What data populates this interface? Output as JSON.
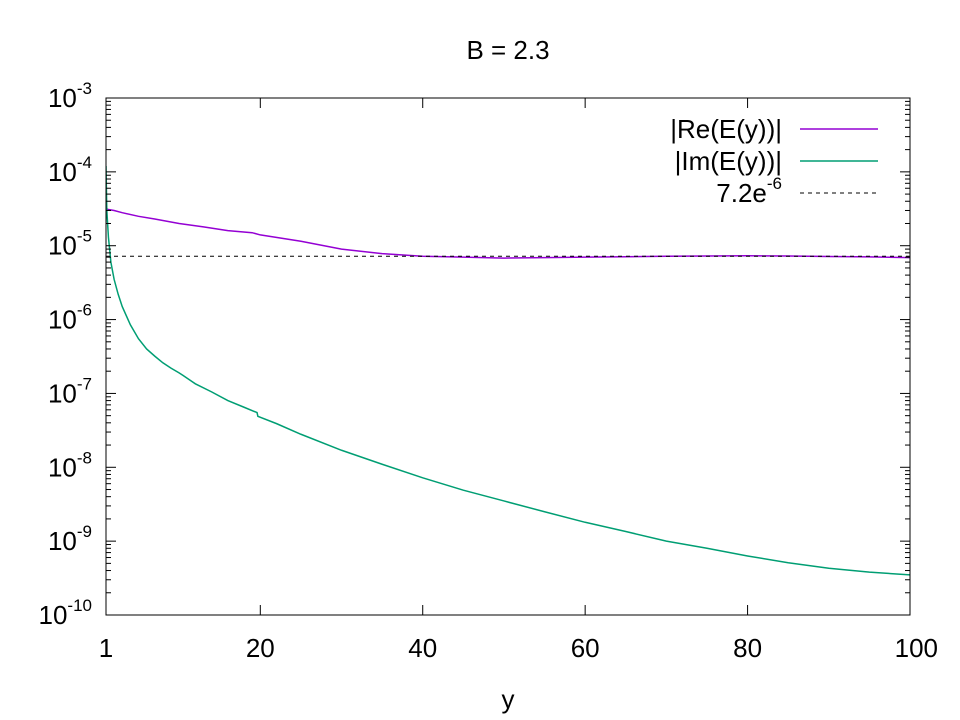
{
  "chart_data": {
    "type": "line",
    "title": "B = 2.3",
    "xlabel": "y",
    "ylabel": "",
    "xlim": [
      1,
      100
    ],
    "ylim": [
      1e-10,
      0.001
    ],
    "yscale": "log",
    "grid": false,
    "legend_position": "top-right",
    "x_ticks": [
      {
        "value": 1,
        "label": "1"
      },
      {
        "value": 20,
        "label": "20"
      },
      {
        "value": 40,
        "label": "40"
      },
      {
        "value": 60,
        "label": "60"
      },
      {
        "value": 80,
        "label": "80"
      },
      {
        "value": 100,
        "label": "100"
      }
    ],
    "y_ticks": [
      {
        "value": 0.001,
        "base": "10",
        "exp": "-3"
      },
      {
        "value": 0.0001,
        "base": "10",
        "exp": "-4"
      },
      {
        "value": 1e-05,
        "base": "10",
        "exp": "-5"
      },
      {
        "value": 1e-06,
        "base": "10",
        "exp": "-6"
      },
      {
        "value": 1e-07,
        "base": "10",
        "exp": "-7"
      },
      {
        "value": 1e-08,
        "base": "10",
        "exp": "-8"
      },
      {
        "value": 1e-09,
        "base": "10",
        "exp": "-9"
      },
      {
        "value": 1e-10,
        "base": "10",
        "exp": "-10"
      }
    ],
    "series": [
      {
        "name": "|Re(E(y))|",
        "color": "#9400d3",
        "style": "solid",
        "x": [
          1,
          1.2,
          2,
          3,
          5,
          7,
          10,
          13,
          16,
          19,
          20,
          25,
          30,
          35,
          40,
          45,
          50,
          55,
          60,
          65,
          70,
          75,
          80,
          85,
          90,
          95,
          100
        ],
        "y": [
          3.3e-05,
          3.1e-05,
          3e-05,
          2.8e-05,
          2.5e-05,
          2.3e-05,
          2e-05,
          1.8e-05,
          1.6e-05,
          1.5e-05,
          1.4e-05,
          1.15e-05,
          9e-06,
          7.8e-06,
          7.2e-06,
          7e-06,
          6.8e-06,
          6.9e-06,
          7e-06,
          7.1e-06,
          7.2e-06,
          7.25e-06,
          7.3e-06,
          7.25e-06,
          7.15e-06,
          7.05e-06,
          6.9e-06
        ]
      },
      {
        "name": "|Im(E(y))|",
        "color": "#009e73",
        "style": "solid",
        "x": [
          1,
          1.1,
          1.3,
          1.6,
          2,
          2.5,
          3,
          4,
          5,
          6,
          7,
          8,
          9,
          10,
          10.5,
          12,
          14,
          16,
          18,
          19.6,
          19.7,
          22,
          25,
          30,
          35,
          40,
          45,
          50,
          55,
          60,
          65,
          70,
          75,
          80,
          85,
          90,
          95,
          100
        ],
        "y": [
          0.00012,
          3e-05,
          1.3e-05,
          6e-06,
          3.5e-06,
          2.2e-06,
          1.5e-06,
          8.5e-07,
          5.5e-07,
          4e-07,
          3.2e-07,
          2.6e-07,
          2.2e-07,
          1.9e-07,
          1.75e-07,
          1.35e-07,
          1.05e-07,
          8e-08,
          6.5e-08,
          5.5e-08,
          4.9e-08,
          3.9e-08,
          2.8e-08,
          1.7e-08,
          1.1e-08,
          7.2e-09,
          4.9e-09,
          3.5e-09,
          2.5e-09,
          1.8e-09,
          1.35e-09,
          1e-09,
          8e-10,
          6.3e-10,
          5.1e-10,
          4.3e-10,
          3.8e-10,
          3.5e-10
        ]
      },
      {
        "name": "7.2e",
        "name_sup": "-6",
        "color": "#000000",
        "style": "dashed",
        "x": [
          1,
          100
        ],
        "y": [
          7.2e-06,
          7.2e-06
        ]
      }
    ]
  }
}
